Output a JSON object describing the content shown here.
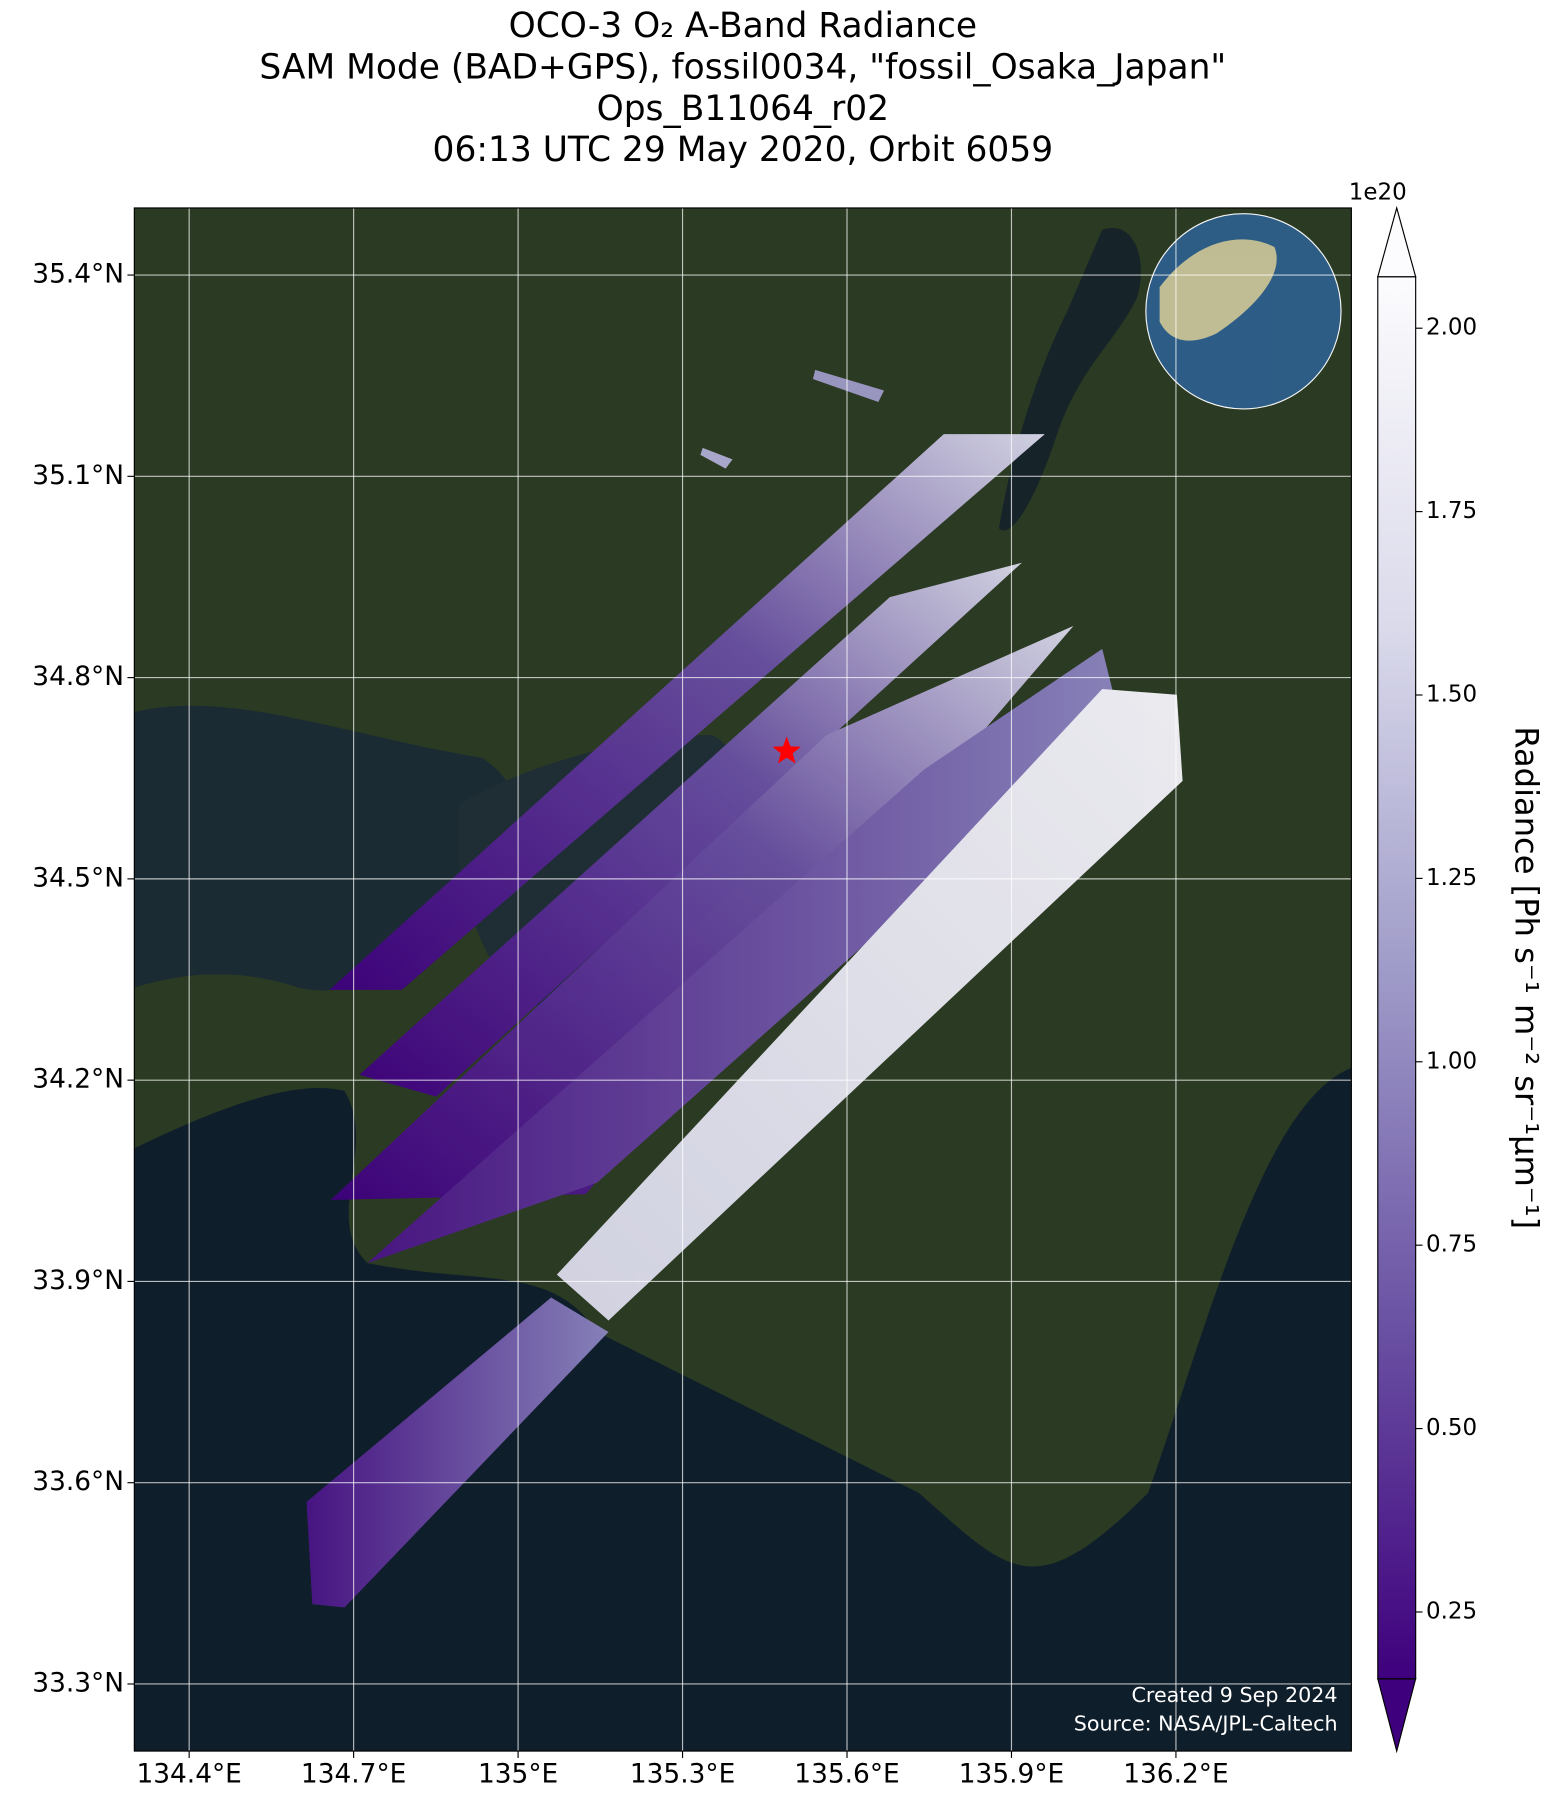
{
  "chart_data": {
    "type": "map",
    "title": [
      "OCO-3 O₂ A-Band Radiance",
      "SAM Mode (BAD+GPS), fossil0034, \"fossil_Osaka_Japan\"",
      "Ops_B11064_r02",
      "06:13 UTC 29 May 2020, Orbit 6059"
    ],
    "xlim": [
      134.3,
      136.52
    ],
    "ylim": [
      33.2,
      35.5
    ],
    "xticks": [
      {
        "value": 134.4,
        "label": "134.4°E"
      },
      {
        "value": 134.7,
        "label": "134.7°E"
      },
      {
        "value": 135,
        "label": "135°E"
      },
      {
        "value": 135.3,
        "label": "135.3°E"
      },
      {
        "value": 135.6,
        "label": "135.6°E"
      },
      {
        "value": 135.9,
        "label": "135.9°E"
      },
      {
        "value": 136.2,
        "label": "136.2°E"
      }
    ],
    "yticks": [
      {
        "value": 33.3,
        "label": "33.3°N"
      },
      {
        "value": 33.6,
        "label": "33.6°N"
      },
      {
        "value": 33.9,
        "label": "33.9°N"
      },
      {
        "value": 34.2,
        "label": "34.2°N"
      },
      {
        "value": 34.5,
        "label": "34.5°N"
      },
      {
        "value": 34.8,
        "label": "34.8°N"
      },
      {
        "value": 35.1,
        "label": "35.1°N"
      },
      {
        "value": 35.4,
        "label": "35.4°N"
      }
    ],
    "grid": true,
    "target": {
      "lon": 135.49,
      "lat": 34.69,
      "color": "#ff0000"
    },
    "colorbar": {
      "label": "Radiance [Ph s⁻¹ m⁻² sr⁻¹μm⁻¹]",
      "offset": "1e20",
      "lim": [
        0.159,
        2.07
      ],
      "ticks": [
        {
          "value": 0.25,
          "label": "0.25"
        },
        {
          "value": 0.5,
          "label": "0.50"
        },
        {
          "value": 0.75,
          "label": "0.75"
        },
        {
          "value": 1,
          "label": "1.00"
        },
        {
          "value": 1.25,
          "label": "1.25"
        },
        {
          "value": 1.5,
          "label": "1.50"
        },
        {
          "value": 1.75,
          "label": "1.75"
        },
        {
          "value": 2,
          "label": "2.00"
        }
      ],
      "colors": [
        "#3f007d",
        "#6a51a3",
        "#9e9ac8",
        "#dadaeb",
        "#fcfbfd"
      ]
    },
    "credits": [
      "Created 9 Sep 2024",
      "Source: NASA/JPL-Caltech"
    ]
  }
}
